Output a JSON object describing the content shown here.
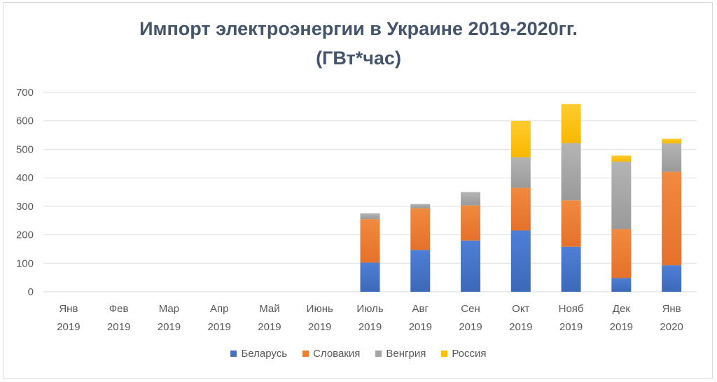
{
  "chart_data": {
    "type": "bar",
    "stacked": true,
    "title_line1": "Импорт электроэнергии в Украине 2019-2020гг.",
    "title_line2": "(ГВт*час)",
    "categories": [
      {
        "month": "Янв",
        "year": "2019"
      },
      {
        "month": "Фев",
        "year": "2019"
      },
      {
        "month": "Мар",
        "year": "2019"
      },
      {
        "month": "Апр",
        "year": "2019"
      },
      {
        "month": "Май",
        "year": "2019"
      },
      {
        "month": "Июнь",
        "year": "2019"
      },
      {
        "month": "Июль",
        "year": "2019"
      },
      {
        "month": "Авг",
        "year": "2019"
      },
      {
        "month": "Сен",
        "year": "2019"
      },
      {
        "month": "Окт",
        "year": "2019"
      },
      {
        "month": "Нояб",
        "year": "2019"
      },
      {
        "month": "Дек",
        "year": "2019"
      },
      {
        "month": "Янв",
        "year": "2020"
      }
    ],
    "series": [
      {
        "name": "Беларусь",
        "color": "#4472c4",
        "values": [
          0,
          0,
          0,
          0,
          0,
          0,
          102,
          147,
          180,
          215,
          158,
          48,
          93
        ]
      },
      {
        "name": "Словакия",
        "color": "#ed7d31",
        "values": [
          0,
          0,
          0,
          0,
          0,
          0,
          153,
          146,
          123,
          150,
          163,
          172,
          328
        ]
      },
      {
        "name": "Венгрия",
        "color": "#a5a5a5",
        "values": [
          0,
          0,
          0,
          0,
          0,
          0,
          20,
          15,
          47,
          107,
          201,
          237,
          100
        ]
      },
      {
        "name": "Россия",
        "color": "#ffc000",
        "values": [
          0,
          0,
          0,
          0,
          0,
          0,
          0,
          0,
          0,
          128,
          137,
          21,
          16
        ]
      }
    ],
    "y_ticks": [
      0,
      100,
      200,
      300,
      400,
      500,
      600,
      700
    ],
    "ylim": [
      0,
      700
    ],
    "gridlines": true,
    "legend_position": "bottom"
  }
}
